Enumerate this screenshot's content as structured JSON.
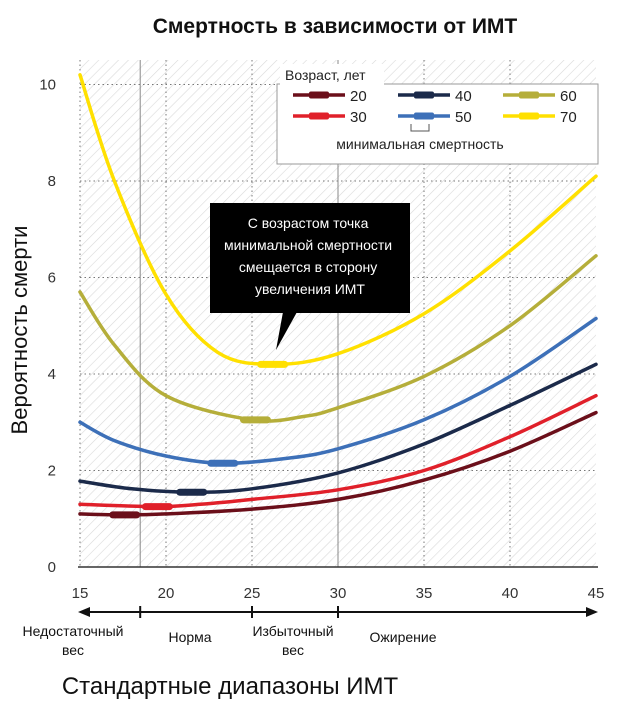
{
  "chart_data": {
    "type": "line",
    "title": "Смертность в зависимости от ИМТ",
    "ylabel": "Вероятность смерти",
    "xlabel": "Стандартные диапазоны ИМТ",
    "xlim": [
      15,
      45
    ],
    "ylim": [
      0,
      10.5
    ],
    "xticks": [
      "15",
      "20",
      "25",
      "30",
      "35",
      "40",
      "45"
    ],
    "yticks": [
      "0",
      "2",
      "4",
      "6",
      "8",
      "10"
    ],
    "grid": true,
    "legend": {
      "title": "Возраст, лет",
      "note": "минимальная смертность",
      "placement": "top-right"
    },
    "series": [
      {
        "name": "20",
        "color": "#6b0f1a",
        "x": [
          15,
          17.6,
          20,
          25,
          30,
          35,
          40,
          45
        ],
        "y": [
          1.1,
          1.08,
          1.1,
          1.2,
          1.4,
          1.8,
          2.4,
          3.2
        ],
        "min": [
          17.6,
          1.08
        ]
      },
      {
        "name": "30",
        "color": "#e0202a",
        "x": [
          15,
          19.5,
          22,
          25,
          30,
          35,
          40,
          45
        ],
        "y": [
          1.3,
          1.25,
          1.3,
          1.4,
          1.6,
          2.0,
          2.7,
          3.55
        ],
        "min": [
          19.5,
          1.25
        ]
      },
      {
        "name": "40",
        "color": "#1b2a4a",
        "x": [
          15,
          18,
          21.5,
          25,
          30,
          35,
          40,
          45
        ],
        "y": [
          1.78,
          1.62,
          1.55,
          1.62,
          1.95,
          2.55,
          3.35,
          4.2
        ],
        "min": [
          21.5,
          1.55
        ]
      },
      {
        "name": "50",
        "color": "#3d70b8",
        "x": [
          15,
          17,
          20,
          23.3,
          27,
          30,
          35,
          40,
          45
        ],
        "y": [
          3.0,
          2.62,
          2.3,
          2.15,
          2.25,
          2.45,
          3.05,
          3.95,
          5.15
        ],
        "min": [
          23.3,
          2.15
        ]
      },
      {
        "name": "60",
        "color": "#b5ae3a",
        "x": [
          15,
          17,
          20,
          25,
          28,
          30,
          35,
          40,
          45
        ],
        "y": [
          5.7,
          4.6,
          3.55,
          3.05,
          3.12,
          3.3,
          3.95,
          5.0,
          6.45
        ],
        "min": [
          25.2,
          3.05
        ]
      },
      {
        "name": "70",
        "color": "#ffe000",
        "x": [
          15,
          17,
          20,
          23,
          26.2,
          30,
          35,
          40,
          45
        ],
        "y": [
          10.2,
          8.0,
          5.65,
          4.45,
          4.2,
          4.42,
          5.25,
          6.55,
          8.1
        ],
        "min": [
          26.2,
          4.2
        ]
      }
    ],
    "bmi_ranges": [
      {
        "label": "Недостаточный вес",
        "from": 15,
        "to": 18.5
      },
      {
        "label": "Норма",
        "from": 18.5,
        "to": 25
      },
      {
        "label": "Избыточный вес",
        "from": 25,
        "to": 30
      },
      {
        "label": "Ожирение",
        "from": 30,
        "to": 45
      }
    ],
    "annotation": {
      "text": "С возрастом точка минимальной смертности смещается в сторону увеличения ИМТ",
      "lines": [
        "С возрастом точка",
        "минимальной смертности",
        "смещается в сторону",
        "увеличения ИМТ"
      ],
      "points_to": [
        26.2,
        4.2
      ]
    }
  }
}
